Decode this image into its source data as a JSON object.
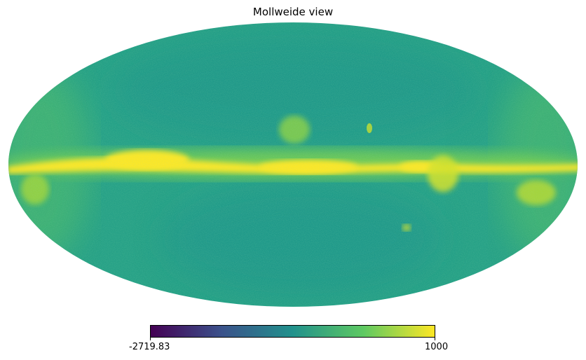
{
  "title": "Mollweide view",
  "projection": "mollweide",
  "colormap": {
    "name": "viridis",
    "stops": [
      "#440154",
      "#3b528b",
      "#21918c",
      "#5ec962",
      "#fde725"
    ]
  },
  "colorbar": {
    "min_label": "-2719.83",
    "max_label": "1000",
    "min": -2719.83,
    "max": 1000
  },
  "map": {
    "background_color": "#26a187",
    "galactic_plane_color": "#fde725"
  }
}
